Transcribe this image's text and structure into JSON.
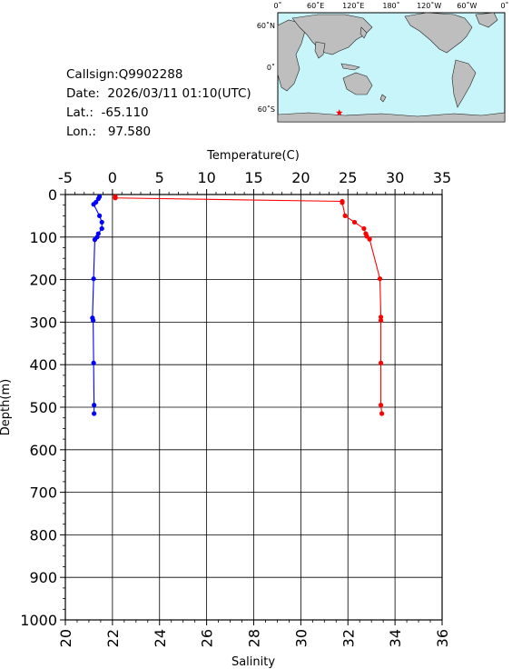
{
  "station": {
    "callsign": "Callsign:Q9902288",
    "date": "Date:  2026/03/11 01:10(UTC)",
    "lat": "Lat.:  -65.110",
    "lon": "Lon.:   97.580"
  },
  "map": {
    "top_labels": [
      "0˚",
      "60˚E",
      "120˚E",
      "180˚",
      "120˚W",
      "60˚W",
      "0˚"
    ],
    "side_labels": [
      "60˚N",
      "0˚",
      "60˚S"
    ],
    "ocean_color": "#c8f5fa",
    "land_color": "#bebebe",
    "marker": {
      "lat": -65.11,
      "lon": 97.58,
      "color": "#ff0000",
      "icon": "star-icon"
    }
  },
  "chart_data": {
    "type": "line",
    "temperature_axis": {
      "label": "Temperature(C)",
      "range": [
        -5,
        35
      ],
      "ticks": [
        "-5",
        "0",
        "5",
        "10",
        "15",
        "20",
        "25",
        "30",
        "35"
      ]
    },
    "salinity_axis": {
      "label": "Salinity",
      "range": [
        20,
        36
      ],
      "ticks": [
        "20",
        "22",
        "24",
        "26",
        "28",
        "30",
        "32",
        "34",
        "36"
      ]
    },
    "depth_axis": {
      "label": "Depth(m)",
      "range": [
        0,
        1000
      ],
      "ticks": [
        "0",
        "100",
        "200",
        "300",
        "400",
        "500",
        "600",
        "700",
        "800",
        "900",
        "1000"
      ]
    },
    "grid": true,
    "series": [
      {
        "name": "Temperature",
        "axis": "temperature",
        "color": "#ff0000",
        "points": [
          [
            0.3,
            5
          ],
          [
            0.3,
            8
          ],
          [
            24.4,
            16
          ],
          [
            24.4,
            19
          ],
          [
            24.7,
            50
          ],
          [
            25.7,
            65
          ],
          [
            26.7,
            80
          ],
          [
            26.9,
            92
          ],
          [
            27.0,
            98
          ],
          [
            27.3,
            105
          ],
          [
            28.4,
            198
          ],
          [
            28.5,
            288
          ],
          [
            28.5,
            296
          ],
          [
            28.5,
            396
          ],
          [
            28.5,
            495
          ],
          [
            28.6,
            515
          ]
        ]
      },
      {
        "name": "Salinity",
        "axis": "salinity",
        "color": "#0000ff",
        "points": [
          [
            21.45,
            5
          ],
          [
            21.4,
            10
          ],
          [
            21.3,
            18
          ],
          [
            21.2,
            23
          ],
          [
            21.45,
            50
          ],
          [
            21.55,
            65
          ],
          [
            21.55,
            80
          ],
          [
            21.4,
            92
          ],
          [
            21.35,
            100
          ],
          [
            21.25,
            106
          ],
          [
            21.2,
            198
          ],
          [
            21.15,
            290
          ],
          [
            21.18,
            296
          ],
          [
            21.2,
            396
          ],
          [
            21.22,
            495
          ],
          [
            21.22,
            515
          ]
        ]
      }
    ]
  }
}
